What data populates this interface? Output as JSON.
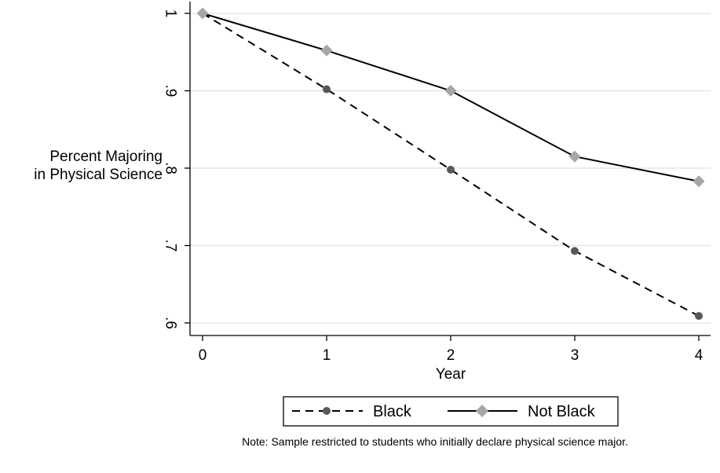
{
  "chart_data": {
    "type": "line",
    "title": "",
    "xlabel": "Year",
    "ylabel": [
      "Percent Majoring",
      "in Physical Science"
    ],
    "x": [
      0,
      1,
      2,
      3,
      4
    ],
    "xticks": [
      "0",
      "1",
      "2",
      "3",
      "4"
    ],
    "xlim": [
      0,
      4
    ],
    "yticks": [
      {
        "value": 1.0,
        "label": "1"
      },
      {
        "value": 0.9,
        "label": ".9"
      },
      {
        "value": 0.8,
        "label": ".8"
      },
      {
        "value": 0.7,
        "label": ".7"
      },
      {
        "value": 0.6,
        "label": ".6"
      }
    ],
    "ylim": [
      0.6,
      1.0
    ],
    "grid": true,
    "legend_position": "bottom",
    "series": [
      {
        "name": "Black",
        "values": [
          1.0,
          0.902,
          0.798,
          0.693,
          0.609
        ],
        "line_style": "dashed",
        "marker": "circle",
        "marker_color": "#595959",
        "line_color": "#000000"
      },
      {
        "name": "Not Black",
        "values": [
          1.0,
          0.952,
          0.9,
          0.815,
          0.783
        ],
        "line_style": "solid",
        "marker": "diamond",
        "marker_color": "#a6a6a6",
        "line_color": "#000000"
      }
    ],
    "note": "Note: Sample restricted to students who initially declare physical science major."
  }
}
